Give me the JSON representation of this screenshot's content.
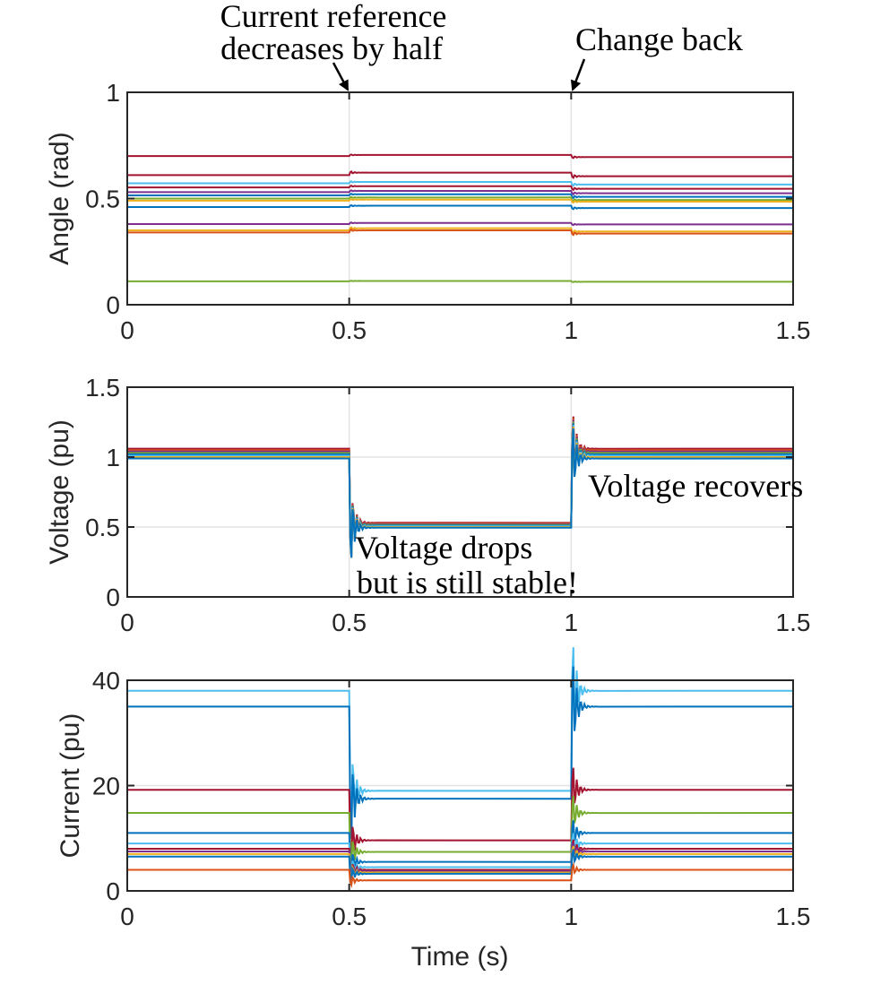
{
  "colors": [
    "#0072BD",
    "#D95319",
    "#EDB120",
    "#7E2F8E",
    "#77AC30",
    "#4DBEEE",
    "#A2142F"
  ],
  "chart_data": [
    {
      "type": "line",
      "ylabel": "Angle (rad)",
      "xlabel": "",
      "xlim": [
        0,
        1.5
      ],
      "ylim": [
        0,
        1
      ],
      "xticks": [
        "0",
        "0.5",
        "1",
        "1.5"
      ],
      "yticks": [
        "0",
        "0.5",
        "1"
      ],
      "grid": "vertical lines at 0.5 and 1",
      "series": [
        {
          "color": "#A2142F",
          "levels": [
            0.7,
            0.705,
            0.695
          ]
        },
        {
          "color": "#A2142F",
          "levels": [
            0.61,
            0.622,
            0.605
          ]
        },
        {
          "color": "#4DBEEE",
          "levels": [
            0.572,
            0.578,
            0.566
          ]
        },
        {
          "color": "#A2142F",
          "levels": [
            0.552,
            0.558,
            0.546
          ]
        },
        {
          "color": "#7E2F8E",
          "levels": [
            0.53,
            0.536,
            0.525
          ]
        },
        {
          "color": "#0072BD",
          "levels": [
            0.515,
            0.52,
            0.508
          ]
        },
        {
          "color": "#77AC30",
          "levels": [
            0.5,
            0.505,
            0.493
          ]
        },
        {
          "color": "#EDB120",
          "levels": [
            0.49,
            0.495,
            0.485
          ]
        },
        {
          "color": "#0072BD",
          "levels": [
            0.46,
            0.466,
            0.455
          ]
        },
        {
          "color": "#7E2F8E",
          "levels": [
            0.38,
            0.385,
            0.378
          ]
        },
        {
          "color": "#EDB120",
          "levels": [
            0.35,
            0.36,
            0.345
          ]
        },
        {
          "color": "#D95319",
          "levels": [
            0.34,
            0.35,
            0.335
          ]
        },
        {
          "color": "#77AC30",
          "levels": [
            0.11,
            0.112,
            0.108
          ]
        },
        {
          "color": "#4DBEEE",
          "levels": [
            0.0,
            0.0,
            0.0
          ]
        }
      ]
    },
    {
      "type": "line",
      "ylabel": "Voltage (pu)",
      "xlabel": "",
      "xlim": [
        0,
        1.5
      ],
      "ylim": [
        0,
        1.5
      ],
      "xticks": [
        "0",
        "0.5",
        "1",
        "1.5"
      ],
      "yticks": [
        "0",
        "0.5",
        "1",
        "1.5"
      ],
      "grid": "on",
      "series": [
        {
          "color": "#A2142F",
          "levels": [
            1.06,
            0.53,
            1.06
          ]
        },
        {
          "color": "#D95319",
          "levels": [
            1.05,
            0.525,
            1.05
          ]
        },
        {
          "color": "#7E2F8E",
          "levels": [
            1.04,
            0.52,
            1.04
          ]
        },
        {
          "color": "#77AC30",
          "levels": [
            1.03,
            0.515,
            1.03
          ]
        },
        {
          "color": "#0072BD",
          "levels": [
            1.02,
            0.51,
            1.02
          ]
        },
        {
          "color": "#4DBEEE",
          "levels": [
            1.01,
            0.505,
            1.01
          ]
        },
        {
          "color": "#EDB120",
          "levels": [
            1.0,
            0.5,
            1.0
          ]
        },
        {
          "color": "#0072BD",
          "levels": [
            0.99,
            0.495,
            0.99
          ]
        }
      ]
    },
    {
      "type": "line",
      "ylabel": "Current (pu)",
      "xlabel": "Time (s)",
      "xlim": [
        0,
        1.5
      ],
      "ylim": [
        0,
        40
      ],
      "xticks": [
        "0",
        "0.5",
        "1",
        "1.5"
      ],
      "yticks": [
        "0",
        "20",
        "40"
      ],
      "grid": "horizontal line at 20, vertical lines at 0.5 and 1",
      "series": [
        {
          "color": "#4DBEEE",
          "levels": [
            38.0,
            19.0,
            38.0
          ]
        },
        {
          "color": "#0072BD",
          "levels": [
            35.0,
            17.5,
            35.0
          ]
        },
        {
          "color": "#A2142F",
          "levels": [
            19.2,
            9.6,
            19.2
          ]
        },
        {
          "color": "#77AC30",
          "levels": [
            14.8,
            7.4,
            14.8
          ]
        },
        {
          "color": "#0072BD",
          "levels": [
            11.0,
            5.5,
            11.0
          ]
        },
        {
          "color": "#4DBEEE",
          "levels": [
            9.0,
            4.5,
            9.0
          ]
        },
        {
          "color": "#A2142F",
          "levels": [
            8.0,
            4.0,
            8.0
          ]
        },
        {
          "color": "#7E2F8E",
          "levels": [
            7.5,
            3.75,
            7.5
          ]
        },
        {
          "color": "#EDB120",
          "levels": [
            7.0,
            3.5,
            7.0
          ]
        },
        {
          "color": "#0072BD",
          "levels": [
            6.5,
            3.25,
            6.5
          ]
        },
        {
          "color": "#D95319",
          "levels": [
            4.0,
            2.0,
            4.0
          ]
        }
      ]
    }
  ],
  "annotations": {
    "top_left_line1": "Current reference",
    "top_left_line2": "decreases by half",
    "top_right": "Change back",
    "voltage_recovers": "Voltage recovers",
    "voltage_drops_line1": "Voltage drops",
    "voltage_drops_line2": "but is still stable!"
  }
}
